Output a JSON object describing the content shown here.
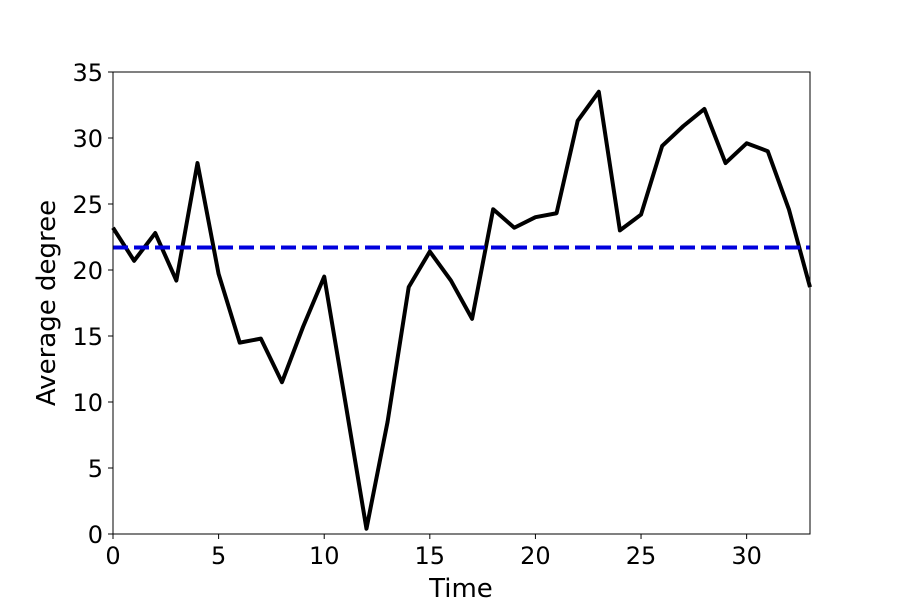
{
  "chart_data": {
    "type": "line",
    "xlabel": "Time",
    "ylabel": "Average degree",
    "xlim": [
      0,
      33
    ],
    "ylim": [
      0,
      35
    ],
    "x_ticks": [
      0,
      5,
      10,
      15,
      20,
      25,
      30
    ],
    "y_ticks": [
      0,
      5,
      10,
      15,
      20,
      25,
      30,
      35
    ],
    "grid": false,
    "series": [
      {
        "style": "solid",
        "color": "#000000",
        "x": [
          0,
          1,
          2,
          3,
          4,
          5,
          6,
          7,
          8,
          9,
          10,
          11,
          12,
          13,
          14,
          15,
          16,
          17,
          18,
          19,
          20,
          21,
          22,
          23,
          24,
          25,
          26,
          27,
          28,
          29,
          30,
          31,
          32,
          33
        ],
        "values": [
          23.2,
          20.7,
          22.8,
          19.2,
          28.1,
          19.7,
          14.5,
          14.8,
          11.5,
          15.7,
          19.5,
          10.0,
          0.4,
          8.5,
          18.7,
          21.4,
          19.2,
          16.3,
          24.6,
          23.2,
          24.0,
          24.3,
          31.3,
          33.5,
          23.0,
          24.2,
          29.4,
          30.9,
          32.2,
          28.1,
          29.6,
          29.0,
          24.6,
          18.7
        ]
      },
      {
        "style": "dashed",
        "color": "#0000dd",
        "x": [
          0,
          33
        ],
        "values": [
          21.7,
          21.7
        ]
      }
    ]
  }
}
